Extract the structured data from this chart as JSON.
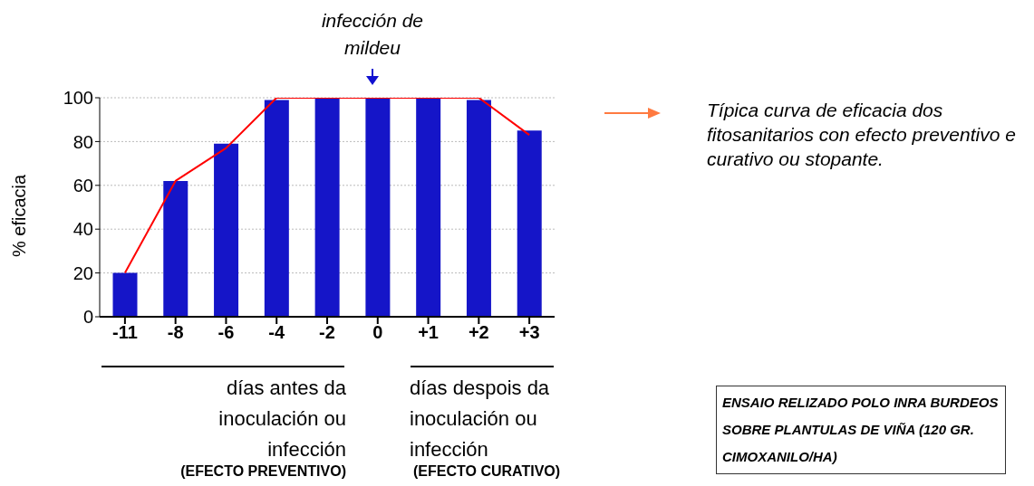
{
  "chart_data": {
    "type": "bar",
    "ylabel": "% eficacia",
    "categories": [
      "-11",
      "-8",
      "-6",
      "-4",
      "-2",
      "0",
      "+1",
      "+2",
      "+3"
    ],
    "series": [
      {
        "color": "#1515c8",
        "values": [
          20,
          62,
          79,
          99,
          100,
          100,
          100,
          99,
          85
        ]
      },
      {
        "type": "line",
        "color": "#ff0000",
        "values": [
          20,
          62,
          77,
          100,
          100,
          100,
          100,
          100,
          83
        ]
      }
    ],
    "ylim": [
      0,
      100
    ],
    "yticks": [
      0,
      20,
      40,
      60,
      80,
      100
    ],
    "grid": "y",
    "marker": "none",
    "annotations": [
      "infección de mildeu",
      "Típica curva de eficacia dos fitosanitarios con efecto preventivo e curativo ou stopante.",
      "días antes da inoculación ou infección",
      "(EFECTO PREVENTIVO)",
      "días despois da inoculación ou infección",
      "(EFECTO CURATIVO)",
      "ENSAIO RELIZADO POLO INRA BURDEOS SOBRE PLANTULAS DE VIÑA (120 GR. CIMOXANILO/HA)"
    ]
  }
}
